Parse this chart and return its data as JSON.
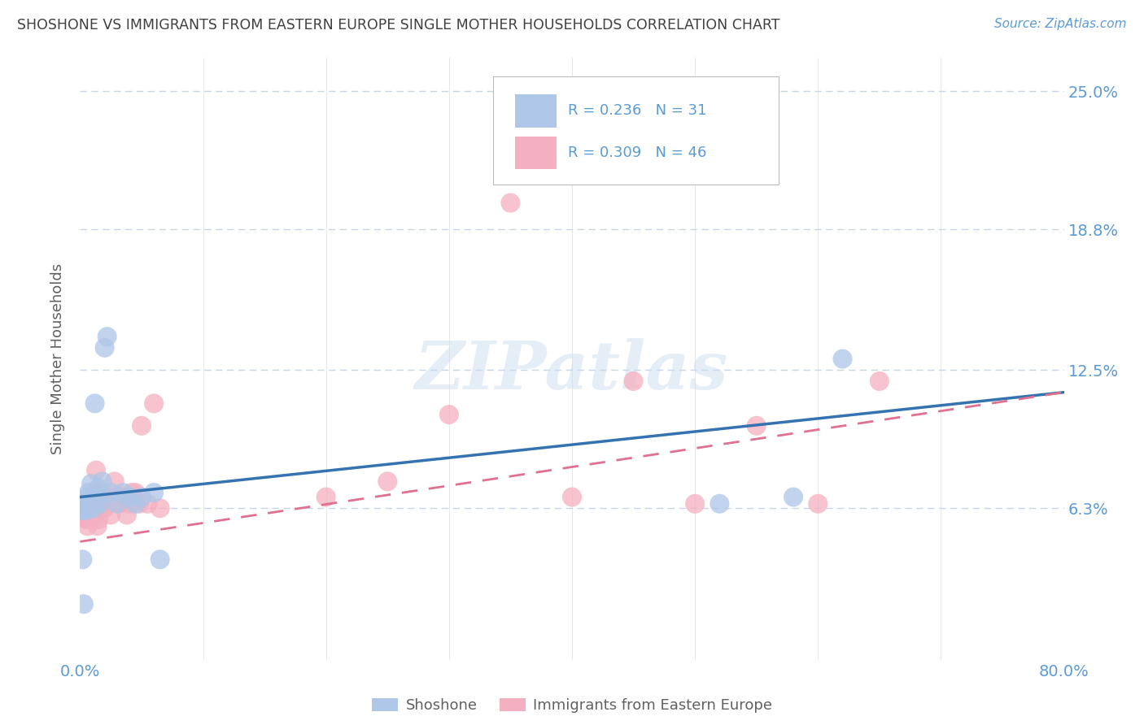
{
  "title": "SHOSHONE VS IMMIGRANTS FROM EASTERN EUROPE SINGLE MOTHER HOUSEHOLDS CORRELATION CHART",
  "source": "Source: ZipAtlas.com",
  "ylabel": "Single Mother Households",
  "watermark": "ZIPatlas",
  "xlim": [
    0.0,
    0.8
  ],
  "ylim": [
    -0.005,
    0.265
  ],
  "ytick_vals": [
    0.063,
    0.125,
    0.188,
    0.25
  ],
  "ytick_labels": [
    "6.3%",
    "12.5%",
    "18.8%",
    "25.0%"
  ],
  "xtick_vals": [
    0.0,
    0.1,
    0.2,
    0.3,
    0.4,
    0.5,
    0.6,
    0.7,
    0.8
  ],
  "xtick_labels": [
    "0.0%",
    "",
    "",
    "",
    "",
    "",
    "",
    "",
    "80.0%"
  ],
  "shoshone_color": "#aec6e8",
  "eastern_europe_color": "#f4afc0",
  "shoshone_line_color": "#3572b0",
  "eastern_europe_line_color": "#e07090",
  "R_shoshone": 0.236,
  "N_shoshone": 31,
  "R_eastern": 0.309,
  "N_eastern": 46,
  "shoshone_x": [
    0.001,
    0.002,
    0.003,
    0.004,
    0.005,
    0.006,
    0.007,
    0.007,
    0.008,
    0.009,
    0.01,
    0.011,
    0.012,
    0.013,
    0.014,
    0.015,
    0.016,
    0.018,
    0.02,
    0.022,
    0.025,
    0.03,
    0.035,
    0.04,
    0.045,
    0.05,
    0.06,
    0.065,
    0.52,
    0.58,
    0.62
  ],
  "shoshone_y": [
    0.062,
    0.04,
    0.02,
    0.065,
    0.062,
    0.068,
    0.07,
    0.063,
    0.067,
    0.074,
    0.068,
    0.063,
    0.11,
    0.065,
    0.068,
    0.072,
    0.065,
    0.075,
    0.135,
    0.14,
    0.07,
    0.065,
    0.07,
    0.068,
    0.065,
    0.068,
    0.07,
    0.04,
    0.065,
    0.068,
    0.13
  ],
  "eastern_x": [
    0.001,
    0.002,
    0.003,
    0.004,
    0.005,
    0.006,
    0.006,
    0.007,
    0.008,
    0.009,
    0.01,
    0.011,
    0.012,
    0.013,
    0.014,
    0.015,
    0.016,
    0.017,
    0.018,
    0.019,
    0.02,
    0.022,
    0.025,
    0.028,
    0.03,
    0.032,
    0.035,
    0.038,
    0.04,
    0.042,
    0.045,
    0.048,
    0.05,
    0.055,
    0.06,
    0.065,
    0.2,
    0.25,
    0.3,
    0.35,
    0.4,
    0.45,
    0.5,
    0.55,
    0.6,
    0.65
  ],
  "eastern_y": [
    0.062,
    0.06,
    0.065,
    0.062,
    0.058,
    0.063,
    0.055,
    0.058,
    0.06,
    0.065,
    0.068,
    0.063,
    0.06,
    0.08,
    0.055,
    0.058,
    0.065,
    0.07,
    0.063,
    0.068,
    0.063,
    0.065,
    0.06,
    0.075,
    0.068,
    0.065,
    0.068,
    0.06,
    0.065,
    0.07,
    0.07,
    0.065,
    0.1,
    0.065,
    0.11,
    0.063,
    0.068,
    0.075,
    0.105,
    0.2,
    0.068,
    0.12,
    0.065,
    0.1,
    0.065,
    0.12
  ],
  "title_color": "#404040",
  "source_color": "#5b9bd5",
  "axis_label_color": "#606060",
  "tick_color": "#5b9bd5",
  "grid_color": "#c8d4e8",
  "background_color": "#ffffff",
  "legend_label_shoshone": "Shoshone",
  "legend_label_eastern": "Immigrants from Eastern Europe"
}
